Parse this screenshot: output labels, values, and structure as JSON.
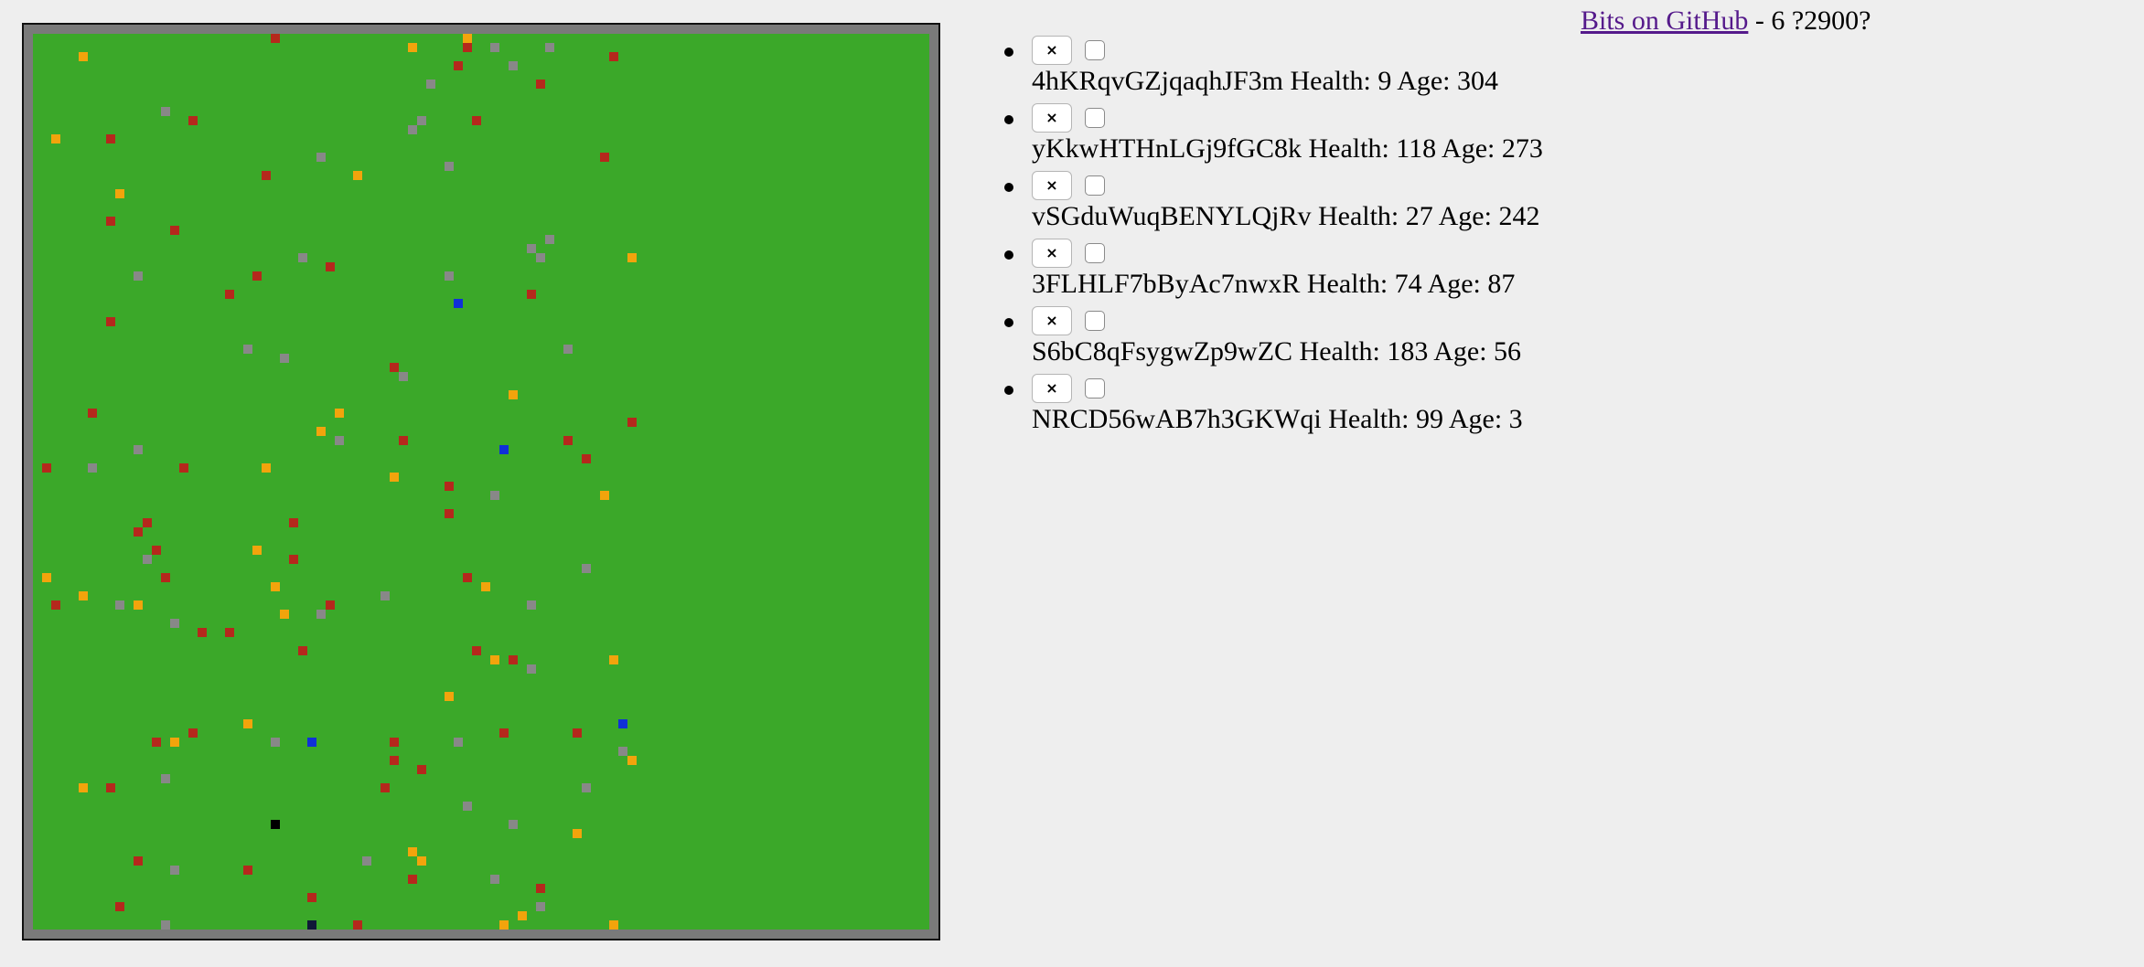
{
  "header": {
    "link_text": "Bits on GitHub",
    "status_text": " - 6 ?2900?"
  },
  "colors": {
    "grass": "#3ba829",
    "wall": "#7a7a7a",
    "red": "#b5281c",
    "orange": "#f2a40c",
    "gray": "#888888",
    "blue": "#1030d8",
    "black": "#000000",
    "navy": "#101838"
  },
  "bots": [
    {
      "remove_label": "×",
      "name": "4hKRqvGZjqaqhJF3m",
      "health_label": "Health:",
      "health": "9",
      "age_label": "Age:",
      "age": "304"
    },
    {
      "remove_label": "×",
      "name": "yKkwHTHnLGj9fGC8k",
      "health_label": "Health:",
      "health": "118",
      "age_label": "Age:",
      "age": "273"
    },
    {
      "remove_label": "×",
      "name": "vSGduWuqBENYLQjRv",
      "health_label": "Health:",
      "health": "27",
      "age_label": "Age:",
      "age": "242"
    },
    {
      "remove_label": "×",
      "name": "3FLHLF7bByAc7nwxR",
      "health_label": "Health:",
      "health": "74",
      "age_label": "Age:",
      "age": "87"
    },
    {
      "remove_label": "×",
      "name": "S6bC8qFsygwZp9wZC",
      "health_label": "Health:",
      "health": "183",
      "age_label": "Age:",
      "age": "56"
    },
    {
      "remove_label": "×",
      "name": "NRCD56wAB7h3GKWqi",
      "health_label": "Health:",
      "health": "99",
      "age_label": "Age:",
      "age": "3"
    }
  ],
  "board": {
    "cols": 98,
    "rows": 98,
    "cells": [
      [
        "red",
        26,
        0
      ],
      [
        "orange",
        47,
        0
      ],
      [
        "red",
        47,
        1
      ],
      [
        "gray",
        50,
        1
      ],
      [
        "gray",
        56,
        1
      ],
      [
        "orange",
        41,
        1
      ],
      [
        "orange",
        5,
        2
      ],
      [
        "red",
        63,
        2
      ],
      [
        "gray",
        52,
        3
      ],
      [
        "red",
        46,
        3
      ],
      [
        "gray",
        43,
        5
      ],
      [
        "red",
        55,
        5
      ],
      [
        "gray",
        14,
        8
      ],
      [
        "red",
        17,
        9
      ],
      [
        "red",
        48,
        9
      ],
      [
        "gray",
        41,
        10
      ],
      [
        "gray",
        42,
        9
      ],
      [
        "orange",
        2,
        11
      ],
      [
        "red",
        8,
        11
      ],
      [
        "red",
        62,
        13
      ],
      [
        "gray",
        31,
        13
      ],
      [
        "gray",
        45,
        14
      ],
      [
        "red",
        25,
        15
      ],
      [
        "orange",
        35,
        15
      ],
      [
        "orange",
        9,
        17
      ],
      [
        "red",
        8,
        20
      ],
      [
        "red",
        15,
        21
      ],
      [
        "gray",
        54,
        23
      ],
      [
        "gray",
        56,
        22
      ],
      [
        "gray",
        55,
        24
      ],
      [
        "orange",
        65,
        24
      ],
      [
        "gray",
        29,
        24
      ],
      [
        "red",
        32,
        25
      ],
      [
        "red",
        24,
        26
      ],
      [
        "gray",
        11,
        26
      ],
      [
        "gray",
        45,
        26
      ],
      [
        "red",
        21,
        28
      ],
      [
        "red",
        54,
        28
      ],
      [
        "blue",
        46,
        29
      ],
      [
        "red",
        8,
        31
      ],
      [
        "gray",
        23,
        34
      ],
      [
        "gray",
        40,
        37
      ],
      [
        "gray",
        58,
        34
      ],
      [
        "gray",
        27,
        35
      ],
      [
        "red",
        39,
        36
      ],
      [
        "orange",
        52,
        39
      ],
      [
        "orange",
        33,
        41
      ],
      [
        "red",
        6,
        41
      ],
      [
        "orange",
        31,
        43
      ],
      [
        "red",
        65,
        42
      ],
      [
        "gray",
        11,
        45
      ],
      [
        "gray",
        33,
        44
      ],
      [
        "red",
        40,
        44
      ],
      [
        "red",
        58,
        44
      ],
      [
        "blue",
        51,
        45
      ],
      [
        "red",
        60,
        46
      ],
      [
        "red",
        1,
        47
      ],
      [
        "gray",
        6,
        47
      ],
      [
        "red",
        16,
        47
      ],
      [
        "orange",
        25,
        47
      ],
      [
        "orange",
        39,
        48
      ],
      [
        "red",
        45,
        49
      ],
      [
        "gray",
        50,
        50
      ],
      [
        "orange",
        62,
        50
      ],
      [
        "red",
        45,
        52
      ],
      [
        "red",
        28,
        53
      ],
      [
        "red",
        12,
        53
      ],
      [
        "red",
        11,
        54
      ],
      [
        "orange",
        24,
        56
      ],
      [
        "red",
        13,
        56
      ],
      [
        "gray",
        12,
        57
      ],
      [
        "red",
        28,
        57
      ],
      [
        "orange",
        1,
        59
      ],
      [
        "red",
        14,
        59
      ],
      [
        "red",
        47,
        59
      ],
      [
        "orange",
        49,
        60
      ],
      [
        "gray",
        60,
        58
      ],
      [
        "orange",
        26,
        60
      ],
      [
        "orange",
        5,
        61
      ],
      [
        "red",
        2,
        62
      ],
      [
        "gray",
        9,
        62
      ],
      [
        "orange",
        11,
        62
      ],
      [
        "gray",
        38,
        61
      ],
      [
        "red",
        32,
        62
      ],
      [
        "gray",
        54,
        62
      ],
      [
        "orange",
        27,
        63
      ],
      [
        "gray",
        31,
        63
      ],
      [
        "gray",
        15,
        64
      ],
      [
        "red",
        18,
        65
      ],
      [
        "red",
        21,
        65
      ],
      [
        "red",
        29,
        67
      ],
      [
        "red",
        48,
        67
      ],
      [
        "orange",
        50,
        68
      ],
      [
        "red",
        52,
        68
      ],
      [
        "orange",
        63,
        68
      ],
      [
        "gray",
        54,
        69
      ],
      [
        "orange",
        45,
        72
      ],
      [
        "orange",
        23,
        75
      ],
      [
        "red",
        17,
        76
      ],
      [
        "orange",
        15,
        77
      ],
      [
        "red",
        13,
        77
      ],
      [
        "gray",
        26,
        77
      ],
      [
        "blue",
        30,
        77
      ],
      [
        "red",
        39,
        77
      ],
      [
        "gray",
        46,
        77
      ],
      [
        "red",
        51,
        76
      ],
      [
        "red",
        59,
        76
      ],
      [
        "blue",
        64,
        75
      ],
      [
        "red",
        39,
        79
      ],
      [
        "gray",
        64,
        78
      ],
      [
        "orange",
        65,
        79
      ],
      [
        "red",
        42,
        80
      ],
      [
        "gray",
        14,
        81
      ],
      [
        "red",
        8,
        82
      ],
      [
        "orange",
        5,
        82
      ],
      [
        "red",
        38,
        82
      ],
      [
        "gray",
        60,
        82
      ],
      [
        "gray",
        47,
        84
      ],
      [
        "orange",
        59,
        87
      ],
      [
        "black",
        26,
        86
      ],
      [
        "gray",
        52,
        86
      ],
      [
        "red",
        11,
        90
      ],
      [
        "orange",
        41,
        89
      ],
      [
        "orange",
        42,
        90
      ],
      [
        "gray",
        36,
        90
      ],
      [
        "gray",
        15,
        91
      ],
      [
        "red",
        23,
        91
      ],
      [
        "red",
        41,
        92
      ],
      [
        "gray",
        50,
        92
      ],
      [
        "red",
        55,
        93
      ],
      [
        "red",
        30,
        94
      ],
      [
        "red",
        9,
        95
      ],
      [
        "gray",
        55,
        95
      ],
      [
        "orange",
        53,
        96
      ],
      [
        "gray",
        14,
        97
      ],
      [
        "navy",
        30,
        97
      ],
      [
        "orange",
        63,
        97
      ],
      [
        "red",
        51,
        98
      ],
      [
        "orange",
        51,
        98
      ],
      [
        "red",
        35,
        98
      ]
    ]
  }
}
